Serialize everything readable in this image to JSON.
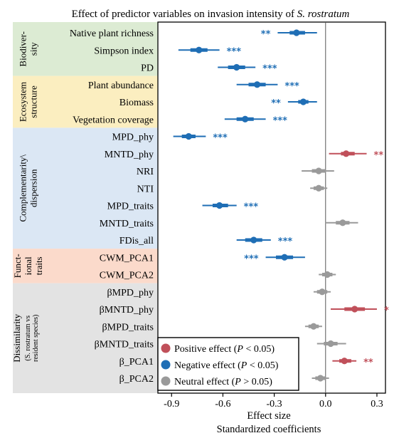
{
  "chart_data": {
    "type": "forest",
    "title": "Effect of predictor variables on invasion intensity of S. rostratum",
    "title_parts": {
      "main": "Effect of predictor variables on invasion intensity of ",
      "species": "S. rostratum"
    },
    "xlabel": "Effect size",
    "xlabel2": "Standardized coefficients",
    "xlim": [
      -0.98,
      0.35
    ],
    "xticks": [
      "-0.9",
      "-0.6",
      "-0.3",
      "0.0",
      "0.3"
    ],
    "xtick_values": [
      -0.9,
      -0.6,
      -0.3,
      0.0,
      0.3
    ],
    "reference_line": 0,
    "colors": {
      "positive": "#c0505a",
      "negative": "#1f6eb5",
      "neutral": "#9a9a9a"
    },
    "groups": [
      {
        "name": "Biodiversity",
        "label_lines": [
          "Biodiver-",
          "sity"
        ],
        "sub_lines": [],
        "bg": "#dcebd3",
        "rows": 3
      },
      {
        "name": "Ecosystem structure",
        "label_lines": [
          "Ecosystem",
          "structure"
        ],
        "sub_lines": [],
        "bg": "#fbeec0",
        "rows": 3
      },
      {
        "name": "Complementarity/dispersion",
        "label_lines": [
          "Complementarity\\",
          "dispersion"
        ],
        "sub_lines": [],
        "bg": "#dbe7f4",
        "rows": 7
      },
      {
        "name": "Functional traits",
        "label_lines": [
          "Funct-",
          "ional",
          "traits"
        ],
        "sub_lines": [],
        "bg": "#fbdacb",
        "rows": 2
      },
      {
        "name": "Dissimilarity",
        "label_lines": [
          "Dissimilarity"
        ],
        "sub_lines": [
          "(S. rostratum vs",
          "resident species)"
        ],
        "bg": "#e3e3e3",
        "rows": 6
      }
    ],
    "variables": [
      {
        "label": "Native plant richness",
        "estimate": -0.17,
        "ci_inner": [
          -0.21,
          -0.12
        ],
        "ci_outer": [
          -0.28,
          -0.05
        ],
        "effect": "negative",
        "sig": "**"
      },
      {
        "label": "Simpson index",
        "estimate": -0.74,
        "ci_inner": [
          -0.79,
          -0.69
        ],
        "ci_outer": [
          -0.86,
          -0.62
        ],
        "effect": "negative",
        "sig": "***"
      },
      {
        "label": "PD",
        "estimate": -0.52,
        "ci_inner": [
          -0.57,
          -0.47
        ],
        "ci_outer": [
          -0.63,
          -0.41
        ],
        "effect": "negative",
        "sig": "***"
      },
      {
        "label": "Plant abundance",
        "estimate": -0.4,
        "ci_inner": [
          -0.45,
          -0.35
        ],
        "ci_outer": [
          -0.52,
          -0.28
        ],
        "effect": "negative",
        "sig": "***"
      },
      {
        "label": "Biomass",
        "estimate": -0.13,
        "ci_inner": [
          -0.16,
          -0.1
        ],
        "ci_outer": [
          -0.22,
          -0.05
        ],
        "effect": "negative",
        "sig": "**"
      },
      {
        "label": "Vegetation coverage",
        "estimate": -0.47,
        "ci_inner": [
          -0.52,
          -0.42
        ],
        "ci_outer": [
          -0.59,
          -0.35
        ],
        "effect": "negative",
        "sig": "***"
      },
      {
        "label": "MPD_phy",
        "estimate": -0.8,
        "ci_inner": [
          -0.84,
          -0.76
        ],
        "ci_outer": [
          -0.89,
          -0.7
        ],
        "effect": "negative",
        "sig": "***"
      },
      {
        "label": "MNTD_phy",
        "estimate": 0.12,
        "ci_inner": [
          0.09,
          0.17
        ],
        "ci_outer": [
          0.02,
          0.24
        ],
        "effect": "positive",
        "sig": "**"
      },
      {
        "label": "NRI",
        "estimate": -0.04,
        "ci_inner": [
          -0.08,
          0.0
        ],
        "ci_outer": [
          -0.14,
          0.05
        ],
        "effect": "neutral",
        "sig": ""
      },
      {
        "label": "NTI",
        "estimate": -0.04,
        "ci_inner": [
          -0.07,
          -0.01
        ],
        "ci_outer": [
          -0.09,
          0.01
        ],
        "effect": "neutral",
        "sig": ""
      },
      {
        "label": "MPD_traits",
        "estimate": -0.62,
        "ci_inner": [
          -0.66,
          -0.57
        ],
        "ci_outer": [
          -0.72,
          -0.52
        ],
        "effect": "negative",
        "sig": "***"
      },
      {
        "label": "MNTD_traits",
        "estimate": 0.1,
        "ci_inner": [
          0.06,
          0.14
        ],
        "ci_outer": [
          0.0,
          0.19
        ],
        "effect": "neutral",
        "sig": ""
      },
      {
        "label": "FDis_all",
        "estimate": -0.42,
        "ci_inner": [
          -0.47,
          -0.37
        ],
        "ci_outer": [
          -0.52,
          -0.32
        ],
        "effect": "negative",
        "sig": "***"
      },
      {
        "label": "CWM_PCA1",
        "estimate": -0.24,
        "ci_inner": [
          -0.29,
          -0.19
        ],
        "ci_outer": [
          -0.35,
          -0.12
        ],
        "effect": "negative",
        "sig": "***"
      },
      {
        "label": "CWM_PCA2",
        "estimate": 0.01,
        "ci_inner": [
          -0.02,
          0.04
        ],
        "ci_outer": [
          -0.04,
          0.06
        ],
        "effect": "neutral",
        "sig": ""
      },
      {
        "label": "βMPD_phy",
        "estimate": -0.02,
        "ci_inner": [
          -0.05,
          0.01
        ],
        "ci_outer": [
          -0.07,
          0.03
        ],
        "effect": "neutral",
        "sig": ""
      },
      {
        "label": "βMNTD_phy",
        "estimate": 0.17,
        "ci_inner": [
          0.11,
          0.23
        ],
        "ci_outer": [
          0.03,
          0.3
        ],
        "effect": "positive",
        "sig": "*"
      },
      {
        "label": "βMPD_traits",
        "estimate": -0.07,
        "ci_inner": [
          -0.1,
          -0.04
        ],
        "ci_outer": [
          -0.12,
          -0.02
        ],
        "effect": "neutral",
        "sig": ""
      },
      {
        "label": "βMNTD_traits",
        "estimate": 0.03,
        "ci_inner": [
          -0.01,
          0.07
        ],
        "ci_outer": [
          -0.05,
          0.12
        ],
        "effect": "neutral",
        "sig": ""
      },
      {
        "label": "β_PCA1",
        "estimate": 0.11,
        "ci_inner": [
          0.08,
          0.15
        ],
        "ci_outer": [
          0.04,
          0.18
        ],
        "effect": "positive",
        "sig": "**"
      },
      {
        "label": "β_PCA2",
        "estimate": -0.03,
        "ci_inner": [
          -0.06,
          0.0
        ],
        "ci_outer": [
          -0.08,
          0.02
        ],
        "effect": "neutral",
        "sig": ""
      }
    ],
    "legend": {
      "placement": "bottom-left",
      "entries": [
        {
          "key": "positive",
          "text": "Positive effect (P < 0.05)",
          "pre": "Positive effect (",
          "p": "P",
          "post": " < 0.05)"
        },
        {
          "key": "negative",
          "text": "Negative effect (P < 0.05)",
          "pre": "Negative effect (",
          "p": "P",
          "post": " < 0.05)"
        },
        {
          "key": "neutral",
          "text": "Neutral effect (P > 0.05)",
          "pre": "Neutral effect (",
          "p": "P",
          "post": " > 0.05)"
        }
      ]
    }
  }
}
